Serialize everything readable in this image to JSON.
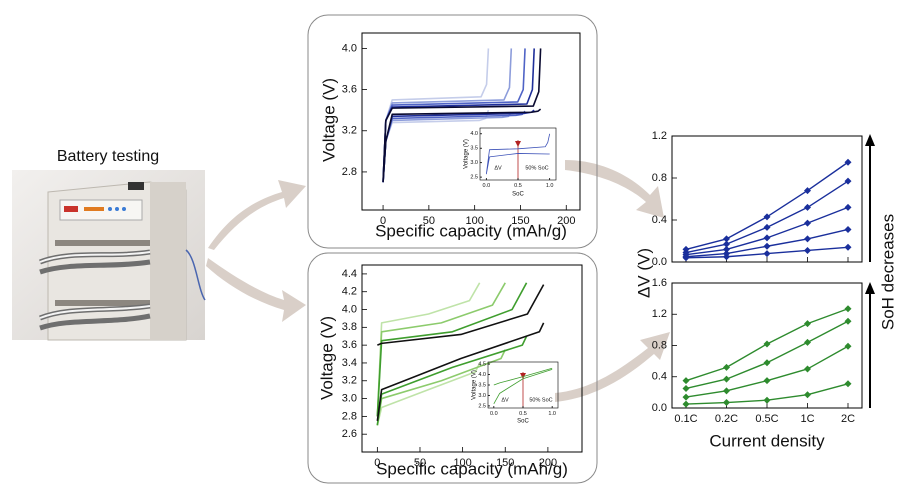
{
  "photo_title": "Battery testing",
  "annotation": "SoH decreases",
  "chart_data": [
    {
      "type": "line",
      "xlabel": "Specific capacity (mAh/g)",
      "ylabel": "Voltage (V)",
      "xlim": [
        -23,
        215
      ],
      "xticks": [
        0,
        50,
        100,
        150,
        200
      ],
      "ylim": [
        2.43,
        4.15
      ],
      "yticks": [
        2.8,
        3.2,
        3.6,
        {
          "value": 4,
          "label": "4.0"
        }
      ],
      "series": [
        {
          "color": "#c5cdea",
          "x": [
            0,
            3,
            10,
            107,
            113,
            115,
            null,
            115,
            112,
            105,
            10,
            3,
            0
          ],
          "values": [
            2.7,
            3.3,
            3.5,
            3.53,
            3.65,
            4.0,
            null,
            3.4,
            3.32,
            3.3,
            3.28,
            3.1,
            2.7
          ]
        },
        {
          "color": "#8d9ddb",
          "x": [
            0,
            3,
            10,
            132,
            138,
            140,
            null,
            140,
            137,
            130,
            10,
            3,
            0
          ],
          "values": [
            2.7,
            3.3,
            3.47,
            3.5,
            3.62,
            4.0,
            null,
            3.38,
            3.34,
            3.33,
            3.3,
            3.1,
            2.7
          ]
        },
        {
          "color": "#4f63c6",
          "x": [
            0,
            3,
            10,
            147,
            153,
            155,
            null,
            155,
            152,
            145,
            10,
            3,
            0
          ],
          "values": [
            2.7,
            3.3,
            3.45,
            3.48,
            3.6,
            4.0,
            null,
            3.39,
            3.36,
            3.35,
            3.32,
            3.1,
            2.7
          ]
        },
        {
          "color": "#1f2f9a",
          "x": [
            0,
            3,
            10,
            157,
            163,
            165,
            null,
            165,
            162,
            155,
            10,
            3,
            0
          ],
          "values": [
            2.7,
            3.3,
            3.43,
            3.46,
            3.6,
            4.0,
            null,
            3.4,
            3.38,
            3.37,
            3.34,
            3.1,
            2.7
          ]
        },
        {
          "color": "#0a0a30",
          "x": [
            0,
            3,
            10,
            164,
            170,
            172,
            null,
            172,
            169,
            162,
            10,
            3,
            0
          ],
          "values": [
            2.7,
            3.3,
            3.42,
            3.44,
            3.58,
            4.0,
            null,
            3.41,
            3.39,
            3.38,
            3.36,
            3.1,
            2.7
          ]
        }
      ]
    },
    {
      "type": "line",
      "xlabel": "SoC",
      "ylabel": "Voltage (V)",
      "xlim": [
        -0.1,
        1.1
      ],
      "xticks": [
        {
          "value": 0,
          "label": "0.0"
        },
        0.5,
        {
          "value": 1,
          "label": "1.0"
        }
      ],
      "ylim": [
        2.4,
        4.2
      ],
      "yticks": [
        2.5,
        {
          "value": 3,
          "label": "3.0"
        },
        3.5,
        {
          "value": 4,
          "label": "4.0"
        }
      ],
      "annotations": [
        "ΔV",
        "50% SoC"
      ],
      "series": [
        {
          "color": "#3d52b8",
          "x": [
            0,
            0.05,
            0.5,
            0.93,
            0.97,
            1.0,
            null,
            1.0,
            0.97,
            0.5,
            0.05,
            0
          ],
          "values": [
            2.6,
            3.45,
            3.48,
            3.55,
            3.7,
            4.0,
            null,
            3.3,
            3.3,
            3.32,
            3.2,
            2.6
          ]
        }
      ]
    },
    {
      "type": "line",
      "xlabel": "Specific capacity (mAh/g)",
      "ylabel": "Voltage (V)",
      "xlim": [
        -18,
        240
      ],
      "xticks": [
        0,
        50,
        100,
        150,
        200
      ],
      "ylim": [
        2.4,
        4.5
      ],
      "yticks": [
        2.6,
        2.8,
        {
          "value": 3,
          "label": "3.0"
        },
        3.2,
        3.4,
        3.6,
        3.8,
        {
          "value": 4,
          "label": "4.0"
        },
        4.2,
        4.4
      ],
      "series": [
        {
          "color": "#bfe3a8",
          "x": [
            0,
            5,
            60,
            108,
            120,
            null,
            120,
            115,
            60,
            5,
            0
          ],
          "values": [
            2.8,
            3.85,
            3.95,
            4.1,
            4.3,
            null,
            3.4,
            3.3,
            3.1,
            2.9,
            2.7
          ]
        },
        {
          "color": "#8ccb6c",
          "x": [
            0,
            5,
            75,
            135,
            150,
            null,
            150,
            145,
            75,
            5,
            0
          ],
          "values": [
            2.8,
            3.75,
            3.85,
            4.05,
            4.3,
            null,
            3.55,
            3.45,
            3.2,
            3.0,
            2.7
          ]
        },
        {
          "color": "#3f9e2e",
          "x": [
            0,
            5,
            88,
            158,
            175,
            null,
            175,
            170,
            88,
            5,
            0
          ],
          "values": [
            2.8,
            3.65,
            3.75,
            4.0,
            4.3,
            null,
            3.7,
            3.6,
            3.35,
            3.05,
            2.7
          ]
        },
        {
          "color": "#111111",
          "x": [
            0,
            5,
            98,
            176,
            195,
            null,
            195,
            190,
            98,
            5,
            0
          ],
          "values": [
            3.6,
            3.62,
            3.72,
            3.95,
            4.28,
            null,
            3.85,
            3.75,
            3.45,
            3.1,
            2.75
          ]
        }
      ]
    },
    {
      "type": "line",
      "xlabel": "SoC",
      "ylabel": "Voltage (V)",
      "xlim": [
        -0.1,
        1.1
      ],
      "xticks": [
        {
          "value": 0,
          "label": "0.0"
        },
        0.5,
        {
          "value": 1,
          "label": "1.0"
        }
      ],
      "ylim": [
        2.4,
        4.6
      ],
      "yticks": [
        2.5,
        {
          "value": 3,
          "label": "3.0"
        },
        3.5,
        {
          "value": 4,
          "label": "4.0"
        },
        4.5
      ],
      "annotations": [
        "ΔV",
        "50% SoC"
      ],
      "series": [
        {
          "color": "#3f9e2e",
          "x": [
            0,
            0.1,
            0.5,
            1.0,
            null,
            1.0,
            0.5,
            0.1,
            0
          ],
          "values": [
            3.5,
            3.6,
            3.9,
            4.3,
            null,
            4.25,
            3.8,
            3.1,
            2.6
          ]
        }
      ]
    },
    {
      "type": "line",
      "ylabel": "ΔV (V)",
      "markers": true,
      "ylim": [
        0,
        1.2
      ],
      "yticks": [
        {
          "value": 0,
          "label": "0.0"
        },
        0.4,
        0.8,
        1.2
      ],
      "series": [
        {
          "color": "#1a2f9c",
          "values": [
            0.12,
            0.22,
            0.43,
            0.68,
            0.95
          ]
        },
        {
          "color": "#1a2f9c",
          "values": [
            0.09,
            0.17,
            0.33,
            0.52,
            0.77
          ]
        },
        {
          "color": "#1a2f9c",
          "values": [
            0.07,
            0.12,
            0.23,
            0.37,
            0.52
          ]
        },
        {
          "color": "#1a2f9c",
          "values": [
            0.05,
            0.08,
            0.15,
            0.22,
            0.31
          ]
        },
        {
          "color": "#1a2f9c",
          "values": [
            0.04,
            0.05,
            0.08,
            0.11,
            0.14
          ]
        }
      ]
    },
    {
      "type": "line",
      "xlabel": "Current density",
      "markers": true,
      "categories": [
        "0.1C",
        "0.2C",
        "0.5C",
        "1C",
        "2C"
      ],
      "ylim": [
        0,
        1.6
      ],
      "yticks": [
        {
          "value": 0,
          "label": "0.0"
        },
        0.4,
        0.8,
        1.2,
        1.6
      ],
      "series": [
        {
          "color": "#2e8b2e",
          "values": [
            0.35,
            0.52,
            0.82,
            1.08,
            1.27
          ]
        },
        {
          "color": "#2e8b2e",
          "values": [
            0.25,
            0.37,
            0.58,
            0.84,
            1.11
          ]
        },
        {
          "color": "#2e8b2e",
          "values": [
            0.14,
            0.22,
            0.35,
            0.5,
            0.79
          ]
        },
        {
          "color": "#2e8b2e",
          "values": [
            0.05,
            0.07,
            0.1,
            0.17,
            0.31
          ]
        }
      ]
    }
  ]
}
